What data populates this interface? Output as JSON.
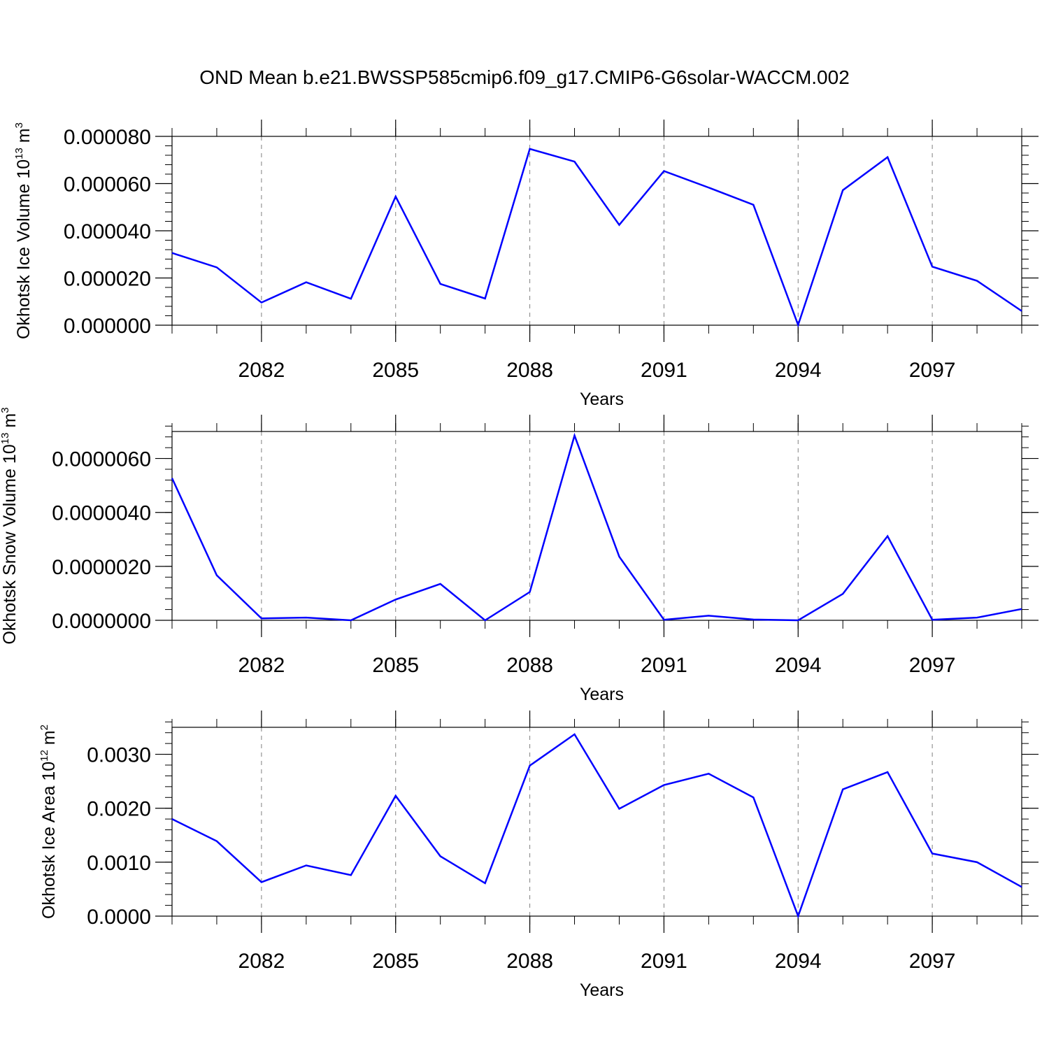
{
  "title": "OND Mean b.e21.BWSSP585cmip6.f09_g17.CMIP6-G6solar-WACCM.002",
  "colors": {
    "line": "#0000ff",
    "axis": "#000000",
    "grid": "#808080"
  },
  "chart_data": [
    {
      "type": "line",
      "xlabel": "Years",
      "ylabel": {
        "text": "Okhotsk Ice Volume 10",
        "sup": "13",
        "unit": " m",
        "unit_sup": "3"
      },
      "xlim": [
        2080,
        2099
      ],
      "x_ticks": [
        2082,
        2085,
        2088,
        2091,
        2094,
        2097
      ],
      "x_tick_labels": [
        "2082",
        "2085",
        "2088",
        "2091",
        "2094",
        "2097"
      ],
      "ylim": [
        0,
        8e-05
      ],
      "y_ticks": [
        0,
        2e-05,
        4e-05,
        6e-05,
        8e-05
      ],
      "y_tick_labels": [
        "0.000000",
        "0.000020",
        "0.000040",
        "0.000060",
        "0.000080"
      ],
      "y_minor_step": 4e-06,
      "grid": "x-dashed",
      "x": [
        2080,
        2081,
        2082,
        2083,
        2084,
        2085,
        2086,
        2087,
        2088,
        2089,
        2090,
        2091,
        2092,
        2093,
        2094,
        2095,
        2096,
        2097,
        2098,
        2099
      ],
      "series": [
        {
          "values": [
            3.06e-05,
            2.45e-05,
            9.6e-06,
            1.82e-05,
            1.12e-05,
            5.45e-05,
            1.75e-05,
            1.13e-05,
            7.47e-05,
            6.93e-05,
            4.25e-05,
            6.53e-05,
            5.83e-05,
            5.1e-05,
            1e-07,
            5.72e-05,
            7.12e-05,
            2.48e-05,
            1.88e-05,
            6e-06
          ]
        }
      ]
    },
    {
      "type": "line",
      "xlabel": "Years",
      "ylabel": {
        "text": "Okhotsk Snow Volume 10",
        "sup": "13",
        "unit": " m",
        "unit_sup": "3"
      },
      "xlim": [
        2080,
        2099
      ],
      "x_ticks": [
        2082,
        2085,
        2088,
        2091,
        2094,
        2097
      ],
      "x_tick_labels": [
        "2082",
        "2085",
        "2088",
        "2091",
        "2094",
        "2097"
      ],
      "ylim": [
        0,
        7e-06
      ],
      "y_ticks": [
        0,
        2e-06,
        4e-06,
        6e-06
      ],
      "y_tick_labels": [
        "0.0000000",
        "0.0000020",
        "0.0000040",
        "0.0000060"
      ],
      "y_minor_step": 4e-07,
      "grid": "x-dashed",
      "x": [
        2080,
        2081,
        2082,
        2083,
        2084,
        2085,
        2086,
        2087,
        2088,
        2089,
        2090,
        2091,
        2092,
        2093,
        2094,
        2095,
        2096,
        2097,
        2098,
        2099
      ],
      "series": [
        {
          "values": [
            5.27e-06,
            1.67e-06,
            7e-08,
            1e-07,
            0.0,
            7.7e-07,
            1.35e-06,
            0.0,
            1.05e-06,
            6.85e-06,
            2.36e-06,
            2e-08,
            1.7e-07,
            3e-08,
            0.0,
            9.8e-07,
            3.12e-06,
            2e-08,
            1e-07,
            4.2e-07
          ]
        }
      ]
    },
    {
      "type": "line",
      "xlabel": "Years",
      "ylabel": {
        "text": "Okhotsk Ice Area 10",
        "sup": "12",
        "unit": " m",
        "unit_sup": "2"
      },
      "xlim": [
        2080,
        2099
      ],
      "x_ticks": [
        2082,
        2085,
        2088,
        2091,
        2094,
        2097
      ],
      "x_tick_labels": [
        "2082",
        "2085",
        "2088",
        "2091",
        "2094",
        "2097"
      ],
      "ylim": [
        0,
        0.0035
      ],
      "y_ticks": [
        0,
        0.001,
        0.002,
        0.003
      ],
      "y_tick_labels": [
        "0.0000",
        "0.0010",
        "0.0020",
        "0.0030"
      ],
      "y_minor_step": 0.0002,
      "grid": "x-dashed",
      "x": [
        2080,
        2081,
        2082,
        2083,
        2084,
        2085,
        2086,
        2087,
        2088,
        2089,
        2090,
        2091,
        2092,
        2093,
        2094,
        2095,
        2096,
        2097,
        2098,
        2099
      ],
      "series": [
        {
          "values": [
            0.0018,
            0.00139,
            0.00063,
            0.00094,
            0.00076,
            0.00223,
            0.00111,
            0.00061,
            0.00279,
            0.00337,
            0.00199,
            0.00243,
            0.00264,
            0.0022,
            0.0,
            0.00235,
            0.00267,
            0.00116,
            0.001,
            0.00054
          ]
        }
      ]
    }
  ]
}
